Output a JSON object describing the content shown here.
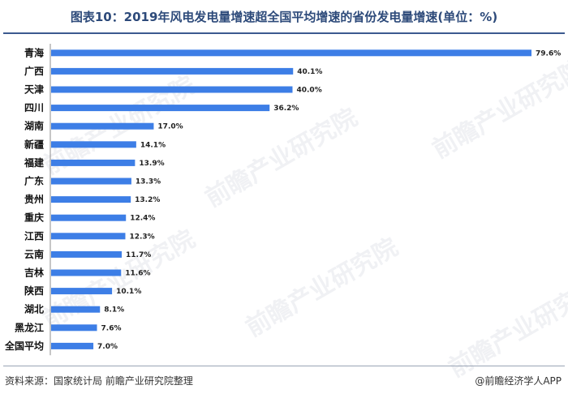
{
  "title": "图表10：2019年风电发电量增速超全国平均增速的省份发电量增速(单位：%)",
  "footer": {
    "source": "资料来源：国家统计局 前瞻产业研究院整理",
    "brand": "@前瞻经济学人APP"
  },
  "watermark": "前瞻产业研究院",
  "colors": {
    "bar": "#3d7ee6",
    "title": "#2d4a7a"
  },
  "chart_data": {
    "type": "bar",
    "orientation": "horizontal",
    "title": "图表10：2019年风电发电量增速超全国平均增速的省份发电量增速(单位：%)",
    "categories": [
      "青海",
      "广西",
      "天津",
      "四川",
      "湖南",
      "新疆",
      "福建",
      "广东",
      "贵州",
      "重庆",
      "江西",
      "云南",
      "吉林",
      "陕西",
      "湖北",
      "黑龙江",
      "全国平均"
    ],
    "values": [
      79.6,
      40.1,
      40.0,
      36.2,
      17.0,
      14.1,
      13.9,
      13.3,
      13.2,
      12.4,
      12.3,
      11.7,
      11.6,
      10.1,
      8.1,
      7.6,
      7.0
    ],
    "value_labels": [
      "79.6%",
      "40.1%",
      "40.0%",
      "36.2%",
      "17.0%",
      "14.1%",
      "13.9%",
      "13.3%",
      "13.2%",
      "12.4%",
      "12.3%",
      "11.7%",
      "11.6%",
      "10.1%",
      "8.1%",
      "7.6%",
      "7.0%"
    ],
    "units": "%",
    "grid": false,
    "legend": "none"
  }
}
